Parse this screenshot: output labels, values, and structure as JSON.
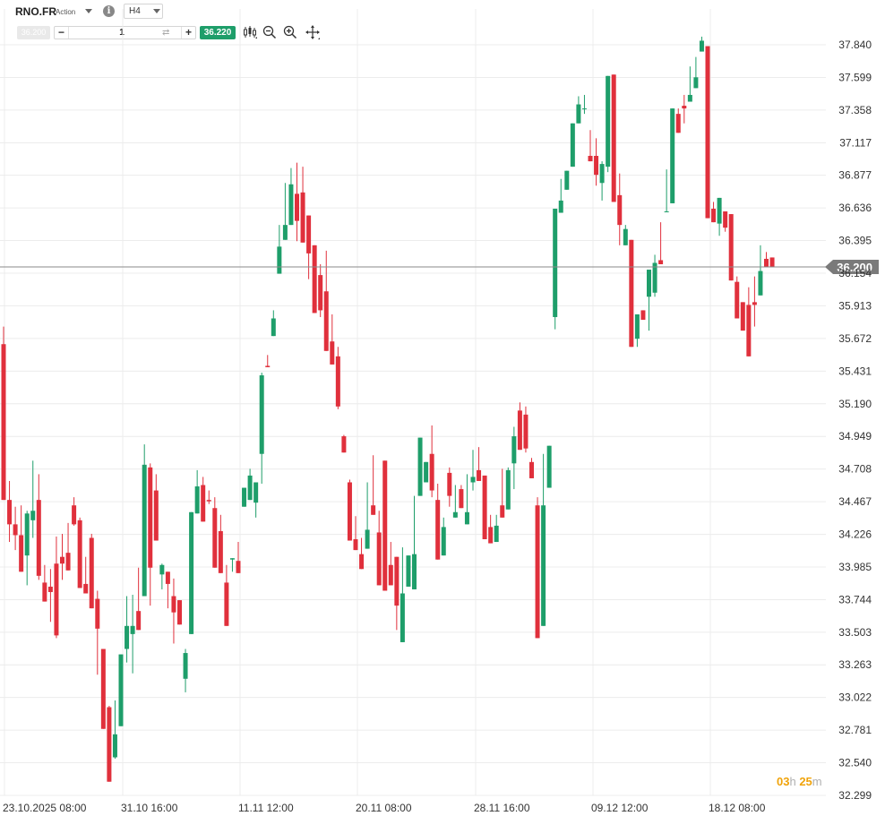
{
  "header": {
    "symbol": "RNO.FR",
    "instrument_type": "Action",
    "timeframe": "H4",
    "sell_price": "36.200",
    "quantity": "1",
    "buy_price": "36.220",
    "tools": [
      "candles-icon",
      "zoom-out-icon",
      "zoom-in-icon",
      "move-crosshair-icon"
    ]
  },
  "countdown": {
    "hours": "03",
    "hours_unit": "h",
    "minutes": "25",
    "minutes_unit": "m"
  },
  "colors": {
    "up": "#1e9e6a",
    "down": "#e0303c",
    "current_price_label": "#7a7a7a",
    "grid": "#ececec",
    "buy": "#1e9e6a"
  },
  "chart_data": {
    "type": "candlestick",
    "title": "",
    "xlabel": "",
    "ylabel": "",
    "ylim": [
      32.299,
      37.84
    ],
    "y_ticks": [
      "37.840",
      "37.599",
      "37.358",
      "37.117",
      "36.877",
      "36.636",
      "36.395",
      "36.154",
      "35.913",
      "35.672",
      "35.431",
      "35.190",
      "34.949",
      "34.708",
      "34.467",
      "34.226",
      "33.985",
      "33.744",
      "33.503",
      "33.263",
      "33.022",
      "32.781",
      "32.540",
      "32.299"
    ],
    "x_ticks": [
      "23.10.2025 08:00",
      "31.10 16:00",
      "11.11 12:00",
      "20.11 08:00",
      "28.11 16:00",
      "09.12 12:00",
      "18.12 08:00"
    ],
    "current_price": 36.2,
    "current_price_label": "36.200",
    "candles": [
      [
        35.63,
        35.76,
        34.93,
        34.48
      ],
      [
        34.48,
        34.62,
        34.17,
        34.3
      ],
      [
        34.3,
        34.43,
        34.11,
        34.22
      ],
      [
        34.22,
        34.44,
        34.09,
        33.95
      ],
      [
        34.07,
        34.4,
        33.85,
        34.38
      ],
      [
        34.33,
        34.77,
        34.2,
        34.4
      ],
      [
        34.48,
        34.67,
        33.89,
        33.92
      ],
      [
        33.87,
        34.0,
        33.83,
        33.73
      ],
      [
        33.84,
        33.97,
        33.58,
        33.8
      ],
      [
        34.01,
        34.21,
        33.46,
        33.48
      ],
      [
        34.06,
        34.23,
        33.89,
        34.01
      ],
      [
        34.09,
        34.31,
        34.14,
        33.96
      ],
      [
        34.44,
        34.5,
        34.29,
        34.3
      ],
      [
        34.33,
        34.35,
        33.88,
        33.83
      ],
      [
        33.86,
        34.06,
        33.81,
        33.79
      ],
      [
        34.2,
        34.23,
        33.77,
        33.68
      ],
      [
        33.75,
        33.81,
        33.19,
        33.53
      ],
      [
        33.38,
        33.19,
        32.93,
        32.79
      ],
      [
        32.95,
        32.96,
        32.55,
        32.4
      ],
      [
        32.58,
        33.0,
        32.57,
        32.75
      ],
      [
        32.81,
        33.33,
        33.2,
        33.34
      ],
      [
        33.38,
        33.77,
        33.28,
        33.55
      ],
      [
        33.49,
        33.78,
        33.2,
        33.55
      ],
      [
        33.66,
        33.98,
        33.75,
        33.52
      ],
      [
        33.77,
        34.89,
        34.2,
        34.74
      ],
      [
        34.72,
        34.75,
        33.7,
        33.98
      ],
      [
        34.55,
        34.67,
        34.5,
        34.18
      ],
      [
        33.93,
        34.01,
        33.82,
        34.0
      ],
      [
        33.95,
        33.87,
        33.68,
        33.86
      ],
      [
        33.77,
        33.9,
        33.42,
        33.65
      ],
      [
        33.74,
        33.65,
        33.63,
        33.56
      ],
      [
        33.16,
        33.38,
        33.06,
        33.35
      ],
      [
        33.49,
        34.12,
        33.62,
        34.39
      ],
      [
        34.38,
        34.7,
        34.54,
        34.58
      ],
      [
        34.59,
        34.65,
        34.53,
        34.32
      ],
      [
        34.48,
        34.55,
        34.45,
        34.47
      ],
      [
        34.42,
        34.5,
        34.22,
        33.98
      ],
      [
        34.25,
        34.37,
        34.13,
        33.94
      ],
      [
        33.87,
        34.0,
        33.96,
        33.55
      ],
      [
        34.04,
        34.03,
        33.95,
        34.05
      ],
      [
        34.03,
        34.17,
        33.99,
        33.94
      ],
      [
        34.43,
        34.52,
        34.48,
        34.57
      ],
      [
        34.48,
        34.71,
        34.5,
        34.66
      ],
      [
        34.46,
        34.56,
        34.35,
        34.61
      ],
      [
        34.82,
        35.42,
        34.6,
        35.4
      ],
      [
        35.47,
        35.47,
        35.55,
        35.46
      ],
      [
        35.69,
        35.72,
        35.88,
        35.82
      ],
      [
        36.15,
        36.51,
        36.16,
        36.35
      ],
      [
        36.4,
        36.7,
        36.82,
        36.51
      ],
      [
        36.51,
        36.81,
        36.93,
        36.81
      ],
      [
        36.74,
        36.97,
        36.39,
        36.54
      ],
      [
        36.75,
        36.94,
        36.66,
        36.38
      ],
      [
        36.58,
        36.47,
        36.11,
        36.3
      ],
      [
        36.36,
        36.33,
        36.14,
        35.86
      ],
      [
        36.14,
        36.22,
        35.83,
        35.88
      ],
      [
        36.02,
        36.32,
        35.74,
        35.58
      ],
      [
        35.65,
        35.85,
        35.62,
        35.48
      ],
      [
        35.54,
        35.61,
        35.15,
        35.17
      ],
      [
        34.95,
        34.96,
        34.93,
        34.83
      ],
      [
        34.61,
        34.63,
        34.2,
        34.18
      ],
      [
        34.19,
        34.36,
        34.28,
        34.11
      ],
      [
        34.08,
        34.2,
        34.17,
        33.97
      ],
      [
        34.12,
        34.41,
        34.61,
        34.26
      ],
      [
        34.44,
        34.81,
        34.4,
        34.37
      ],
      [
        34.24,
        34.4,
        34.3,
        33.85
      ],
      [
        34.77,
        34.74,
        34.38,
        33.81
      ],
      [
        34.0,
        34.17,
        33.92,
        33.85
      ],
      [
        34.06,
        34.0,
        33.52,
        33.7
      ],
      [
        33.43,
        34.13,
        33.49,
        33.79
      ],
      [
        33.84,
        33.97,
        33.95,
        34.07
      ],
      [
        33.82,
        34.51,
        34.13,
        34.08
      ],
      [
        34.51,
        34.88,
        34.66,
        34.94
      ],
      [
        34.61,
        34.73,
        34.61,
        34.76
      ],
      [
        34.82,
        35.03,
        34.5,
        34.55
      ],
      [
        34.48,
        34.6,
        34.18,
        34.04
      ],
      [
        34.07,
        34.35,
        34.29,
        34.28
      ],
      [
        34.68,
        34.72,
        34.43,
        34.51
      ],
      [
        34.35,
        34.57,
        34.59,
        34.39
      ],
      [
        34.56,
        34.59,
        34.42,
        34.42
      ],
      [
        34.3,
        34.67,
        34.44,
        34.39
      ],
      [
        34.61,
        34.85,
        34.55,
        34.65
      ],
      [
        34.7,
        34.87,
        34.65,
        34.62
      ],
      [
        34.66,
        34.55,
        34.34,
        34.19
      ],
      [
        34.28,
        34.37,
        34.21,
        34.16
      ],
      [
        34.17,
        34.37,
        34.22,
        34.29
      ],
      [
        34.44,
        34.71,
        34.45,
        34.35
      ],
      [
        34.41,
        34.72,
        34.6,
        34.7
      ],
      [
        34.75,
        35.02,
        34.56,
        34.95
      ],
      [
        35.14,
        35.2,
        35.1,
        34.85
      ],
      [
        35.11,
        35.17,
        34.83,
        34.86
      ],
      [
        34.76,
        34.79,
        34.74,
        34.64
      ],
      [
        34.44,
        34.5,
        34.25,
        33.46
      ],
      [
        33.55,
        34.82,
        34.57,
        34.44
      ],
      [
        34.57,
        34.71,
        34.68,
        34.88
      ],
      [
        35.83,
        35.9,
        35.74,
        36.63
      ],
      [
        36.6,
        36.85,
        36.79,
        36.69
      ],
      [
        36.77,
        36.91,
        36.88,
        36.91
      ],
      [
        36.94,
        37.18,
        36.94,
        37.26
      ],
      [
        37.26,
        37.46,
        37.29,
        37.4
      ],
      [
        37.37,
        37.47,
        37.33,
        37.37
      ],
      [
        37.02,
        37.21,
        37.0,
        36.98
      ],
      [
        37.02,
        37.15,
        36.8,
        36.88
      ],
      [
        36.82,
        36.98,
        36.69,
        36.96
      ],
      [
        36.94,
        37.43,
        36.9,
        37.61
      ],
      [
        37.62,
        37.28,
        36.81,
        36.68
      ],
      [
        36.73,
        36.89,
        36.36,
        36.51
      ],
      [
        36.36,
        36.36,
        36.51,
        36.48
      ],
      [
        36.4,
        35.65,
        35.64,
        35.61
      ],
      [
        35.67,
        35.61,
        35.71,
        35.85
      ],
      [
        35.88,
        35.81,
        35.88,
        35.81
      ],
      [
        35.98,
        36.1,
        35.73,
        36.18
      ],
      [
        36.01,
        36.29,
        35.98,
        36.23
      ],
      [
        36.25,
        36.39,
        36.53,
        36.22
      ],
      [
        36.61,
        36.92,
        36.89,
        36.61
      ],
      [
        36.67,
        37.3,
        36.89,
        37.37
      ],
      [
        37.33,
        37.37,
        37.3,
        37.19
      ],
      [
        37.39,
        37.26,
        37.47,
        37.37
      ],
      [
        37.42,
        37.68,
        37.57,
        37.47
      ],
      [
        37.52,
        37.75,
        37.6,
        37.6
      ],
      [
        37.79,
        37.9,
        37.81,
        37.87
      ],
      [
        37.83,
        37.8,
        36.79,
        36.56
      ],
      [
        36.63,
        36.68,
        36.64,
        36.53
      ],
      [
        36.52,
        36.59,
        36.43,
        36.71
      ],
      [
        36.61,
        36.46,
        36.53,
        36.49
      ],
      [
        36.59,
        36.55,
        36.31,
        36.1
      ],
      [
        36.09,
        36.13,
        35.91,
        35.82
      ],
      [
        35.94,
        35.93,
        35.88,
        35.73
      ],
      [
        35.92,
        36.05,
        35.76,
        35.54
      ],
      [
        35.94,
        36.13,
        35.76,
        35.92
      ],
      [
        35.99,
        36.36,
        36.06,
        36.17
      ],
      [
        36.26,
        36.31,
        36.22,
        36.2
      ],
      [
        36.27,
        36.24,
        36.26,
        36.2
      ]
    ]
  }
}
